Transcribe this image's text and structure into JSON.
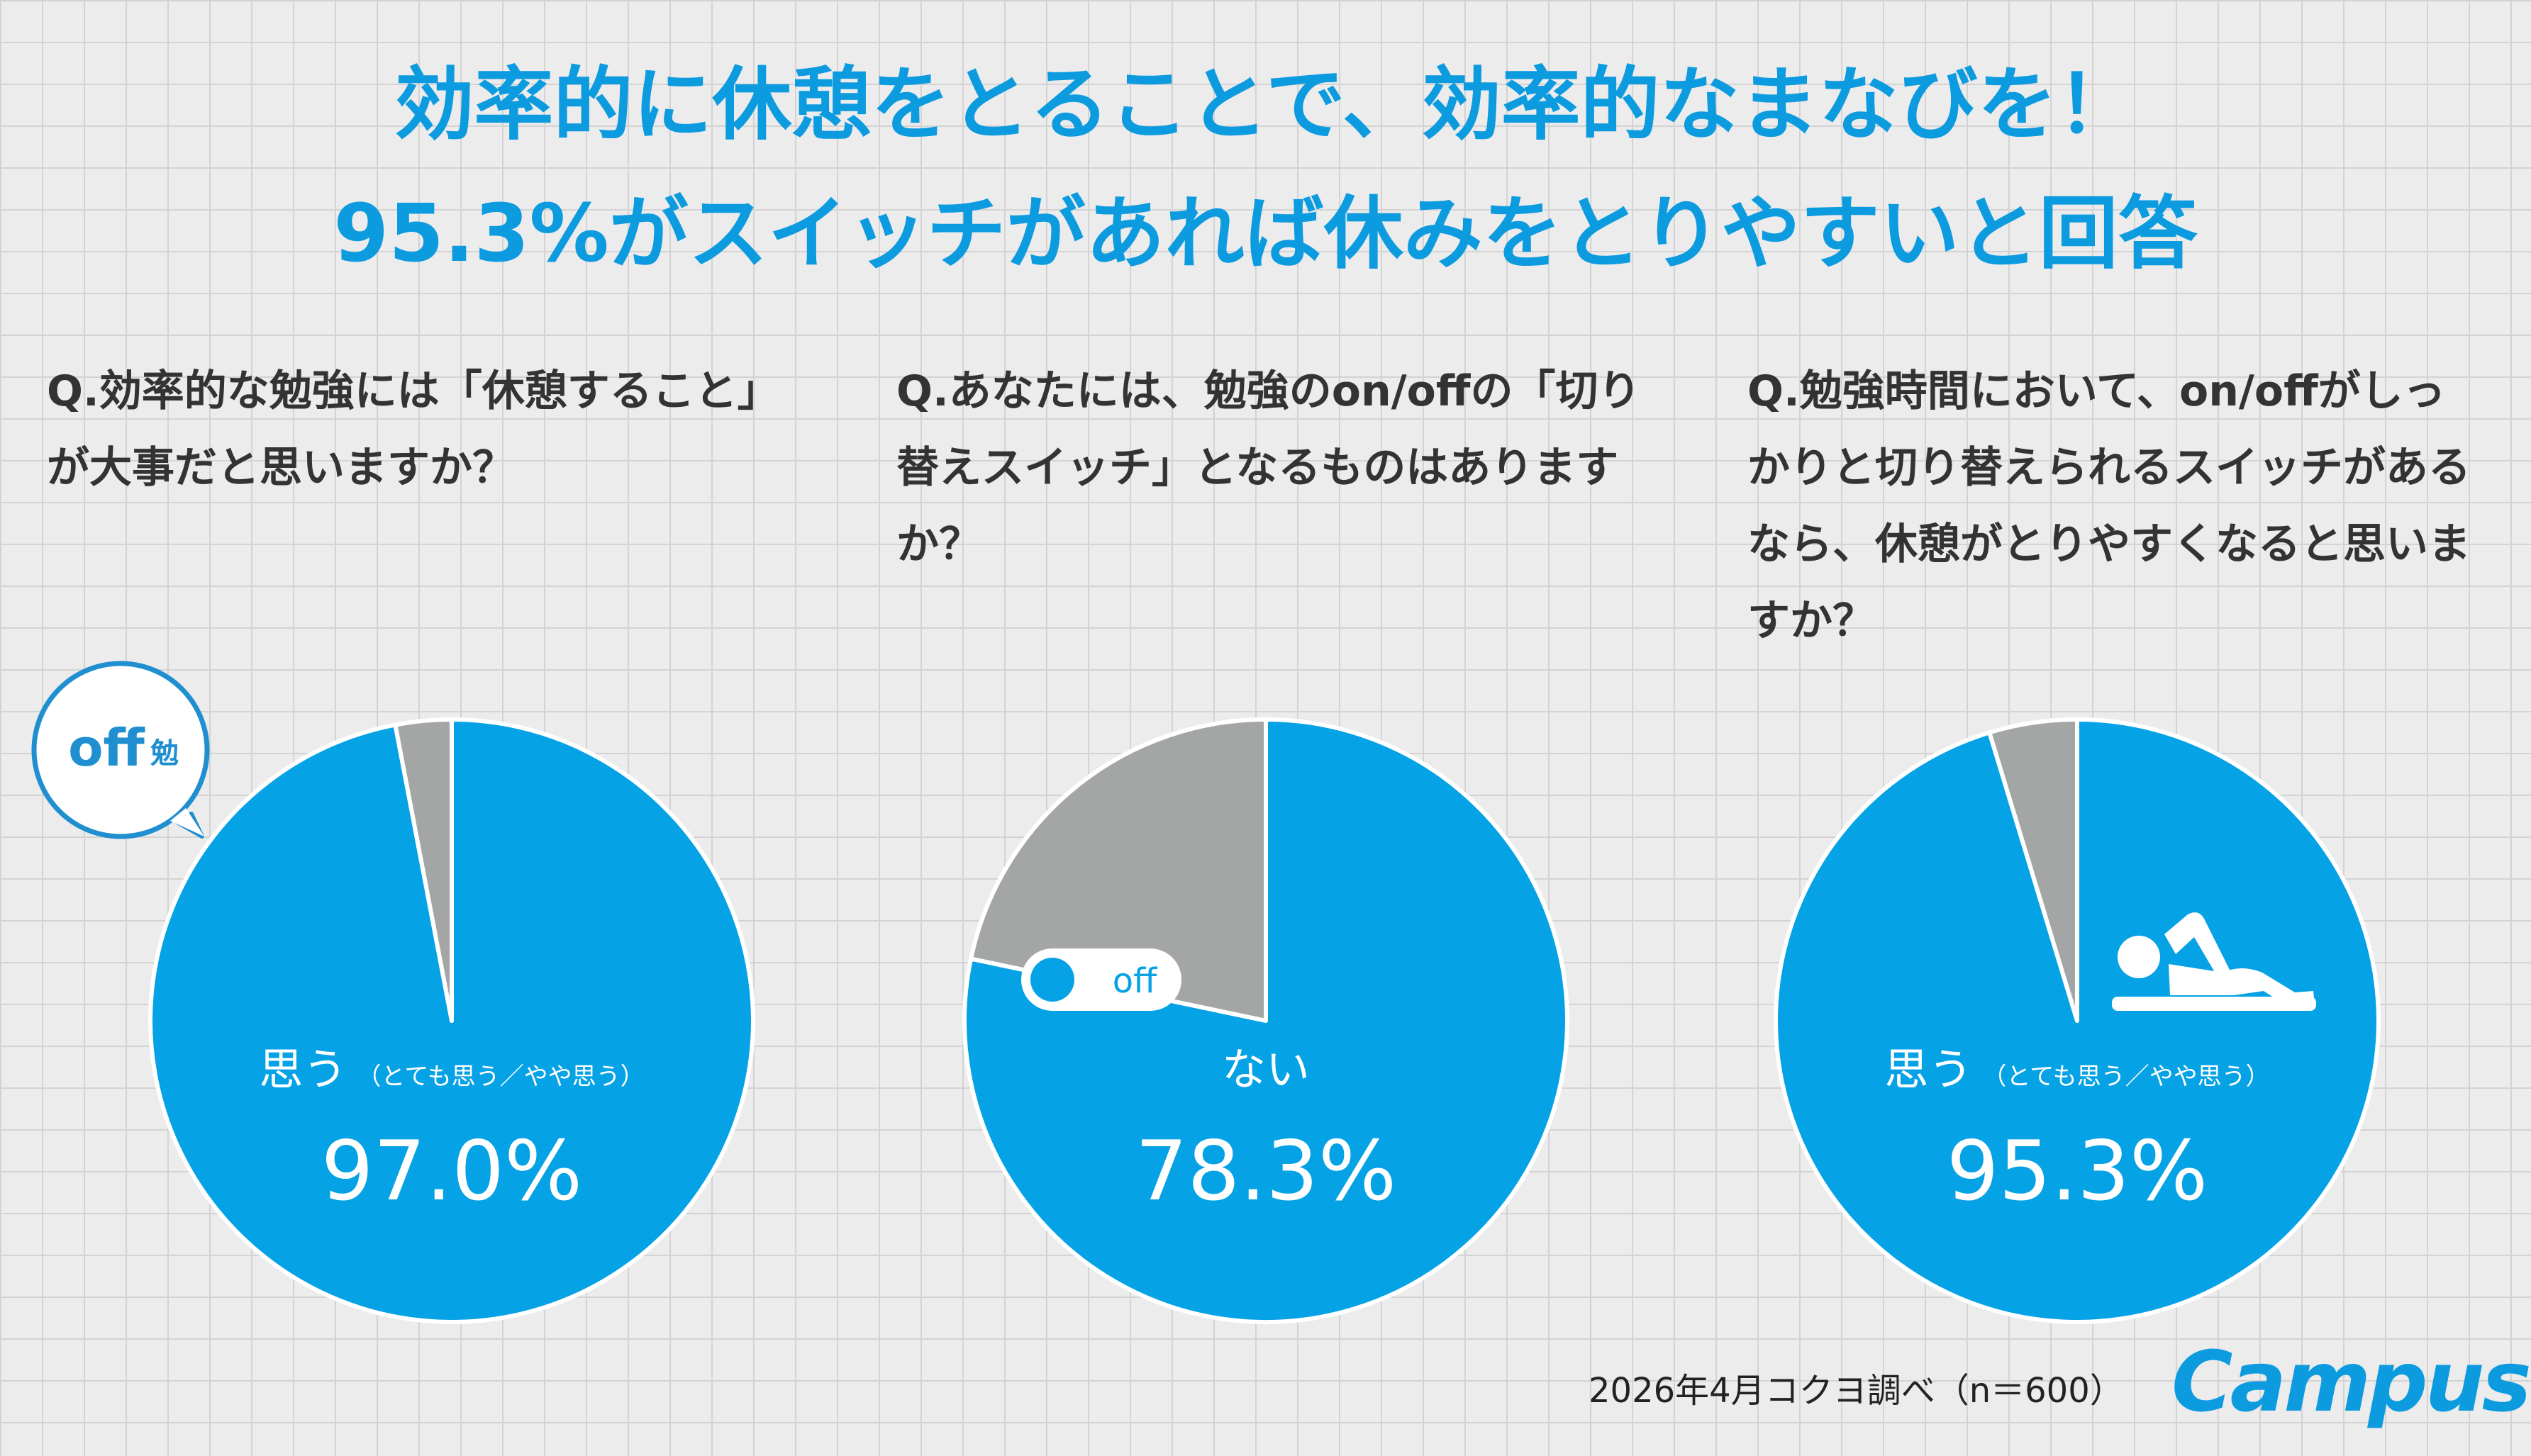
{
  "title": {
    "line1": "効率的に休憩をとることで、効率的なまなびを！",
    "line2": "95.3%がスイッチがあれば休みをとりやすいと回答"
  },
  "questions": [
    "Q.効率的な勉強には「休憩すること」が大事だと思いますか？",
    "Q.あなたには、勉強のon/offの「切り替えスイッチ」となるものはありますか？",
    "Q.勉強時間において、on/offがしっかりと切り替えられるスイッチがあるなら、休憩がとりやすくなると思いますか？"
  ],
  "icons": {
    "bubble_text": "off",
    "bubble_kanji": "勉",
    "toggle_text": "off"
  },
  "colors": {
    "primary": "#05a2e6",
    "secondary": "#a4a5a5",
    "title": "#0d9be0"
  },
  "chart_data": [
    {
      "type": "pie",
      "slices": [
        {
          "label": "思う",
          "sublabel": "（とても思う／やや思う）",
          "value": 97.0,
          "display": "97.0%"
        },
        {
          "label": "",
          "value": 3.0
        }
      ]
    },
    {
      "type": "pie",
      "slices": [
        {
          "label": "ない",
          "sublabel": "",
          "value": 78.3,
          "display": "78.3%"
        },
        {
          "label": "",
          "value": 21.7
        }
      ]
    },
    {
      "type": "pie",
      "slices": [
        {
          "label": "思う",
          "sublabel": "（とても思う／やや思う）",
          "value": 95.3,
          "display": "95.3%"
        },
        {
          "label": "",
          "value": 4.7
        }
      ]
    }
  ],
  "footer": {
    "source": "2026年4月コクヨ調べ（n＝600）",
    "logo": "Campus"
  }
}
